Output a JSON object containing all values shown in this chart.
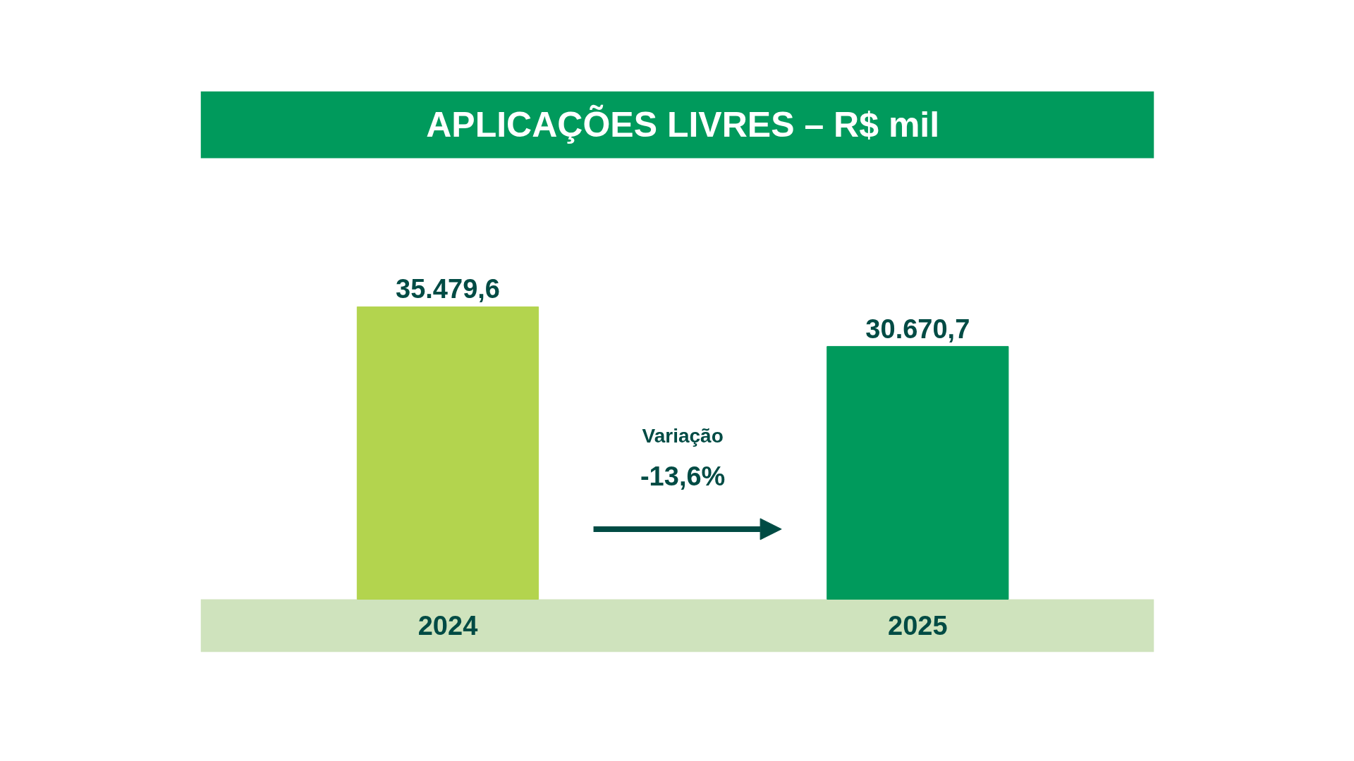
{
  "chart_data": {
    "type": "bar",
    "title": "APLICAÇÕES LIVRES – R$ mil",
    "categories": [
      "2024",
      "2025"
    ],
    "values": [
      35479.6,
      30670.7
    ],
    "value_labels": [
      "35.479,6",
      "30.670,7"
    ],
    "colors": [
      "#b3d44e",
      "#009a5c"
    ],
    "annotations": [
      "Variação",
      "-13,6%"
    ],
    "grid": false
  }
}
